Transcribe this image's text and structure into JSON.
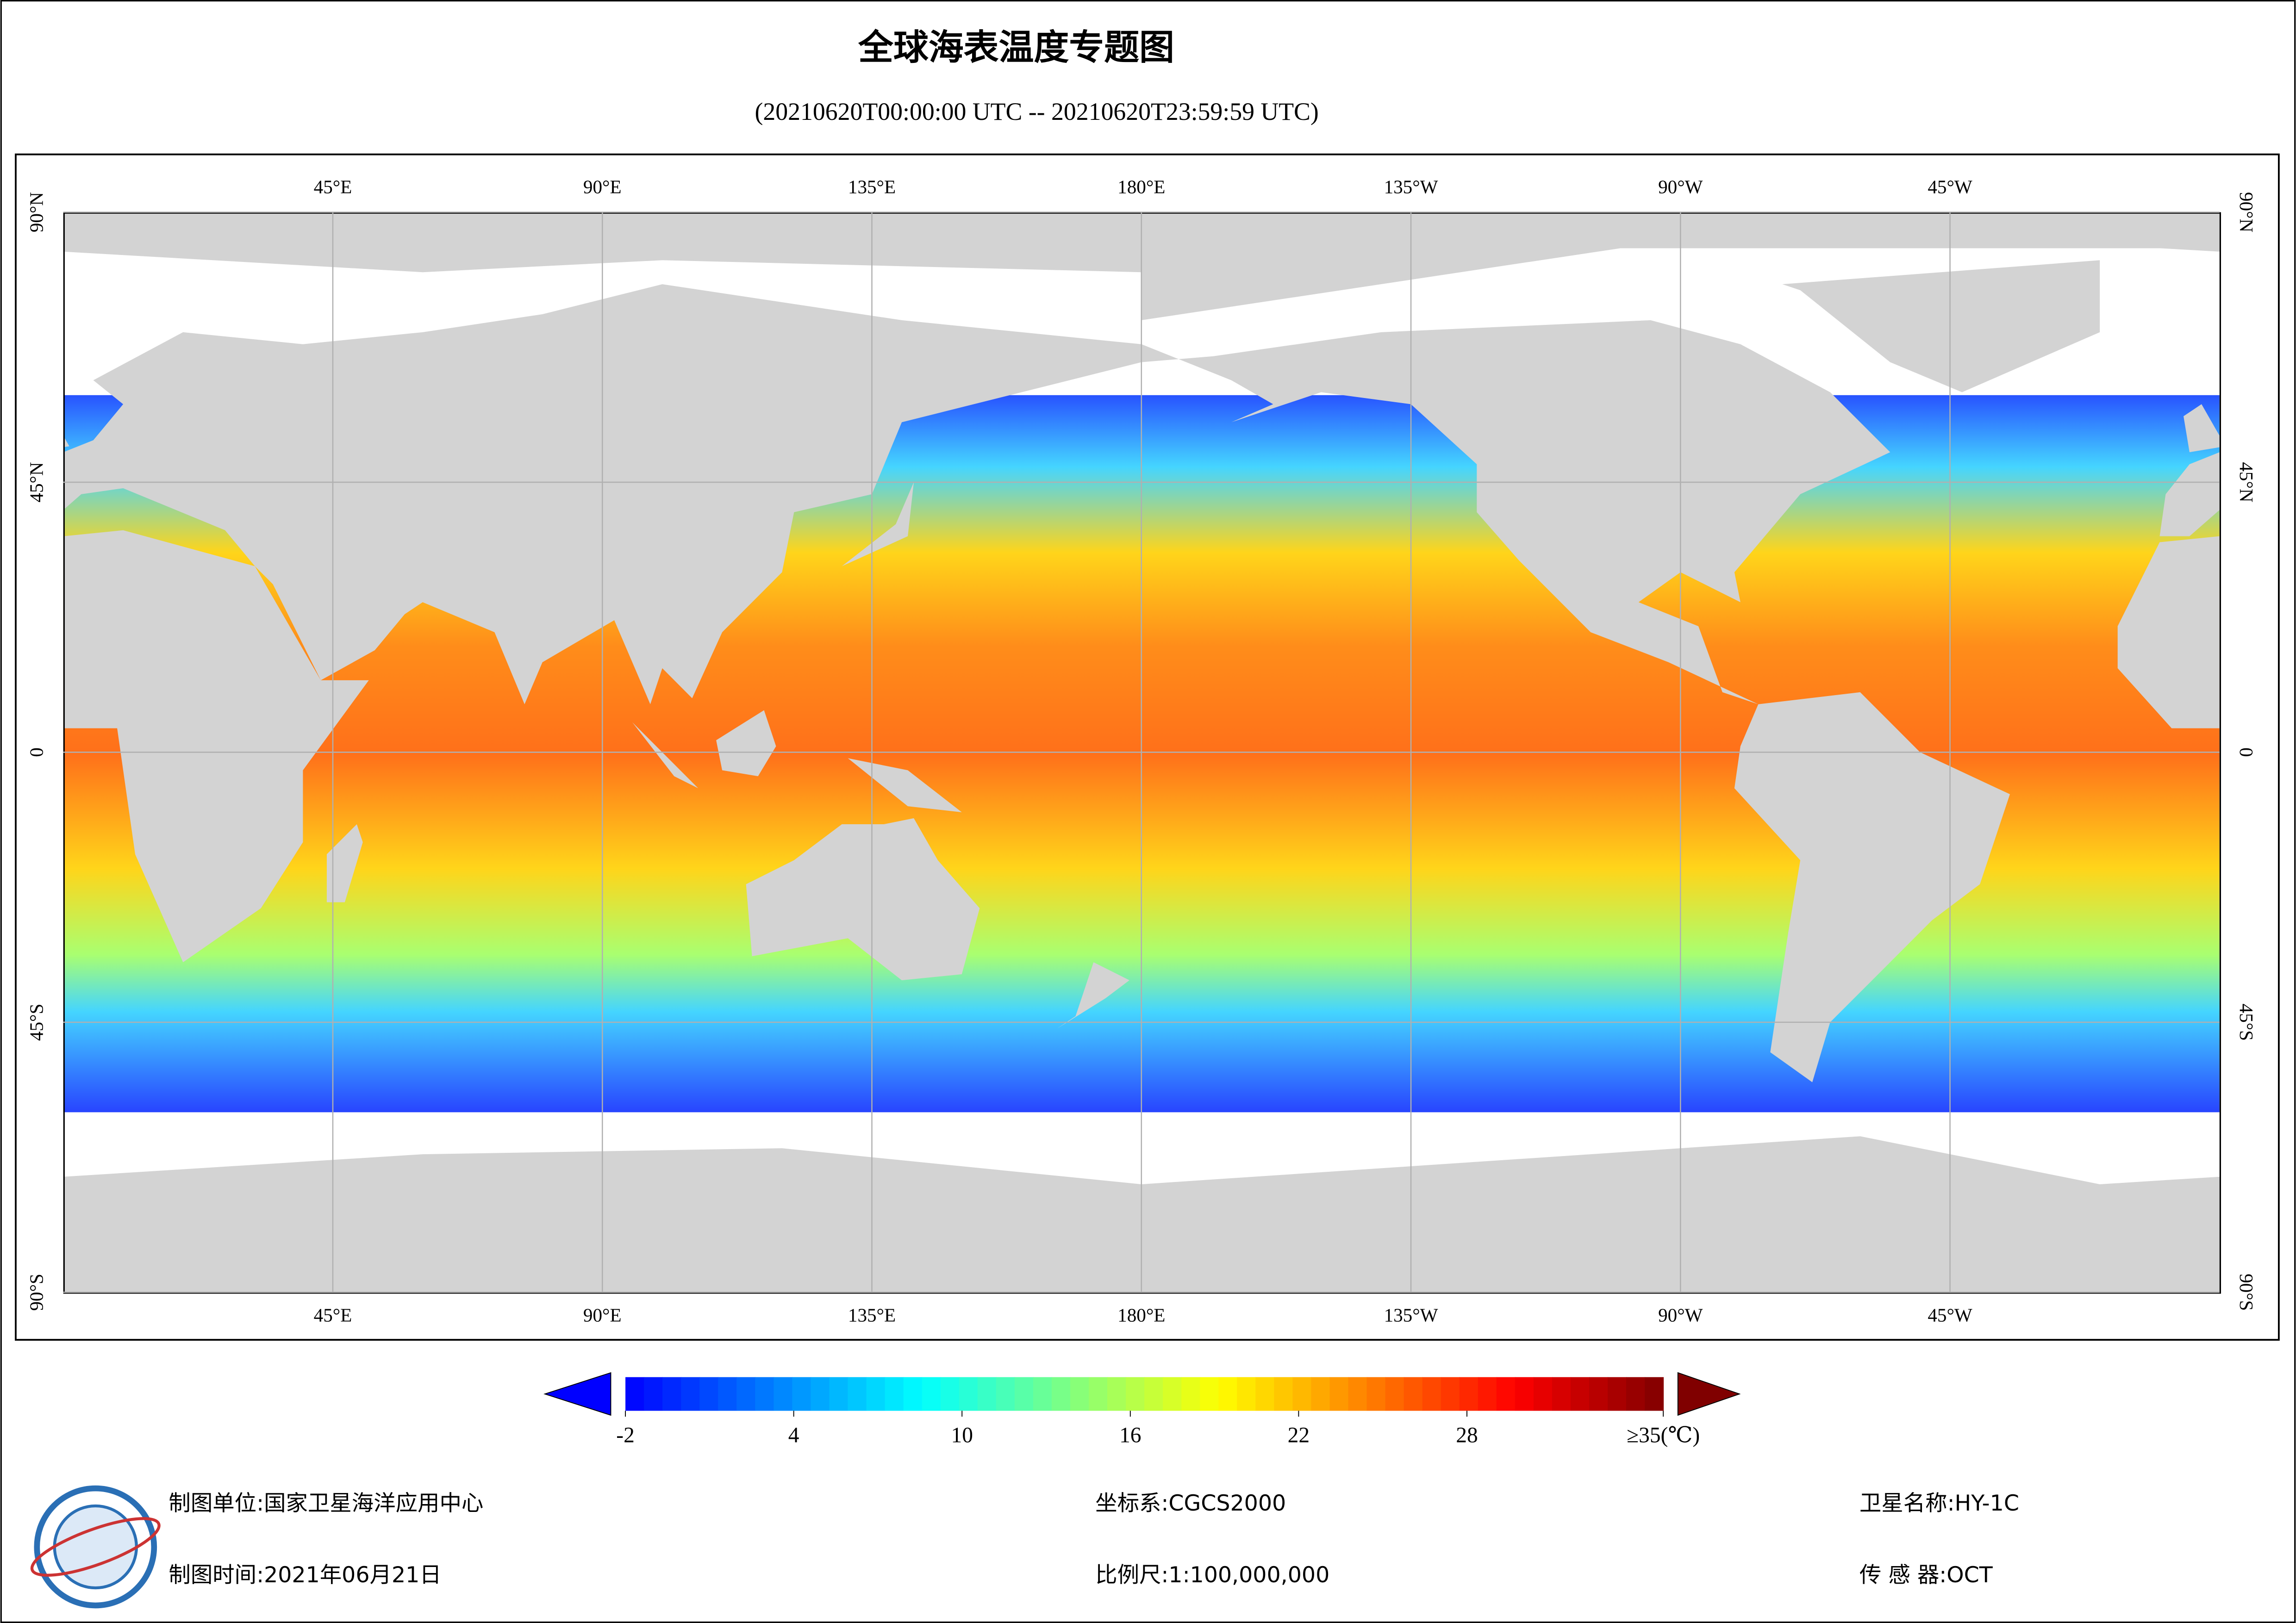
{
  "header": {
    "title": "全球海表温度专题图",
    "subtitle": "(20210620T00:00:00 UTC -- 20210620T23:59:59 UTC)"
  },
  "map": {
    "lon_ticks": [
      {
        "value": 45,
        "label": "45°E"
      },
      {
        "value": 90,
        "label": "90°E"
      },
      {
        "value": 135,
        "label": "135°E"
      },
      {
        "value": 180,
        "label": "180°E"
      },
      {
        "value": -135,
        "label": "135°W"
      },
      {
        "value": -90,
        "label": "90°W"
      },
      {
        "value": -45,
        "label": "45°W"
      }
    ],
    "lat_ticks": [
      {
        "value": 90,
        "label": "90°N"
      },
      {
        "value": 45,
        "label": "45°N"
      },
      {
        "value": 0,
        "label": "0"
      },
      {
        "value": -45,
        "label": "45°S"
      },
      {
        "value": -90,
        "label": "90°S"
      }
    ]
  },
  "colorbar": {
    "range": [
      -2,
      35
    ],
    "ticks": [
      -2,
      4,
      10,
      16,
      22,
      28,
      {
        "value": 35,
        "label": "≥35(℃)"
      }
    ],
    "colors": [
      "#0000ff",
      "#0080ff",
      "#00ffff",
      "#80ff80",
      "#ffff00",
      "#ff8000",
      "#ff0000",
      "#800000"
    ]
  },
  "footer": {
    "unit": "制图单位:国家卫星海洋应用中心",
    "time": "制图时间:2021年06月21日",
    "crs": "坐标系:CGCS2000",
    "scale": "比例尺:1:100,000,000",
    "satellite": "卫星名称:HY-1C",
    "sensor": "传 感 器:OCT"
  }
}
